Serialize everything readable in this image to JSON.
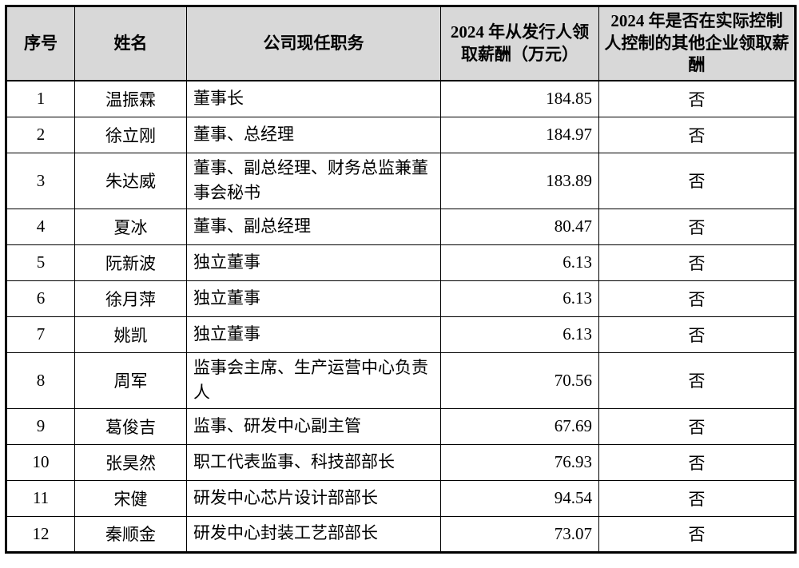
{
  "table": {
    "columns": [
      {
        "label": "序号"
      },
      {
        "label": "姓名"
      },
      {
        "label": "公司现任职务"
      },
      {
        "label": "2024 年从发行人领取薪酬（万元）"
      },
      {
        "label": "2024 年是否在实际控制人控制的其他企业领取薪酬"
      }
    ],
    "rows": [
      {
        "no": "1",
        "name": "温振霖",
        "position": "董事长",
        "salary": "184.85",
        "other_comp": "否"
      },
      {
        "no": "2",
        "name": "徐立刚",
        "position": "董事、总经理",
        "salary": "184.97",
        "other_comp": "否"
      },
      {
        "no": "3",
        "name": "朱达威",
        "position": "董事、副总经理、财务总监兼董事会秘书",
        "salary": "183.89",
        "other_comp": "否"
      },
      {
        "no": "4",
        "name": "夏冰",
        "position": "董事、副总经理",
        "salary": "80.47",
        "other_comp": "否"
      },
      {
        "no": "5",
        "name": "阮新波",
        "position": "独立董事",
        "salary": "6.13",
        "other_comp": "否"
      },
      {
        "no": "6",
        "name": "徐月萍",
        "position": "独立董事",
        "salary": "6.13",
        "other_comp": "否"
      },
      {
        "no": "7",
        "name": "姚凯",
        "position": "独立董事",
        "salary": "6.13",
        "other_comp": "否"
      },
      {
        "no": "8",
        "name": "周军",
        "position": "监事会主席、生产运营中心负责人",
        "salary": "70.56",
        "other_comp": "否"
      },
      {
        "no": "9",
        "name": "葛俊吉",
        "position": "监事、研发中心副主管",
        "salary": "67.69",
        "other_comp": "否"
      },
      {
        "no": "10",
        "name": "张昊然",
        "position": "职工代表监事、科技部部长",
        "salary": "76.93",
        "other_comp": "否"
      },
      {
        "no": "11",
        "name": "宋健",
        "position": "研发中心芯片设计部部长",
        "salary": "94.54",
        "other_comp": "否"
      },
      {
        "no": "12",
        "name": "秦顺金",
        "position": "研发中心封装工艺部部长",
        "salary": "73.07",
        "other_comp": "否"
      }
    ]
  }
}
